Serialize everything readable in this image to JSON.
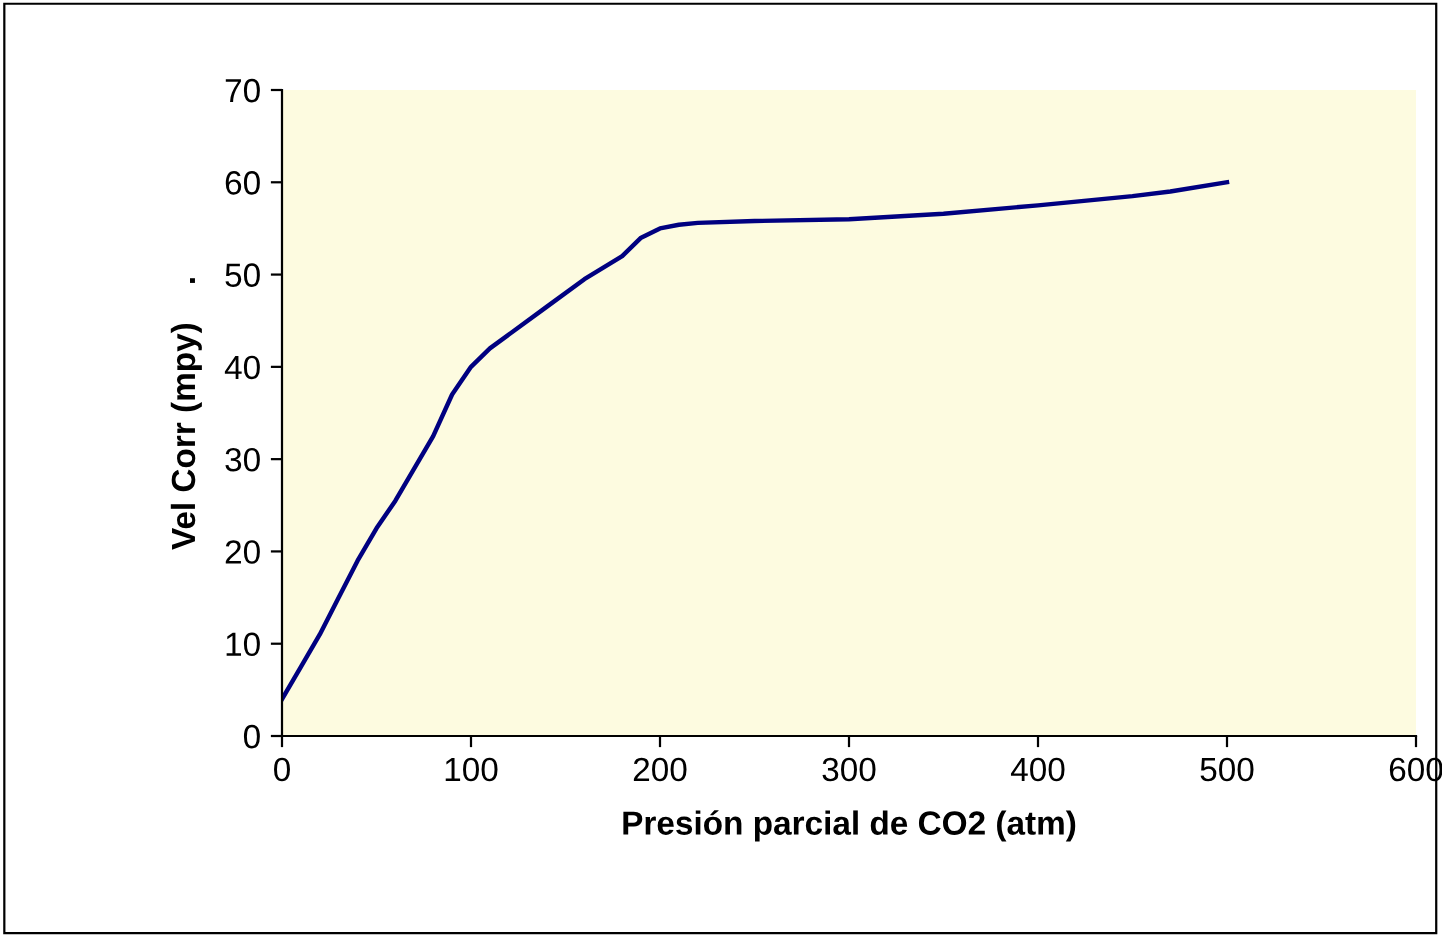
{
  "chart_data": {
    "type": "line",
    "xlabel": "Presión parcial de CO2 (atm)",
    "ylabel": "Vel Corr (mpy)    .",
    "x": [
      0,
      10,
      20,
      30,
      40,
      50,
      60,
      70,
      80,
      90,
      100,
      110,
      120,
      140,
      160,
      180,
      190,
      200,
      210,
      220,
      250,
      300,
      350,
      400,
      450,
      470,
      500
    ],
    "series": [
      {
        "color": "#000080",
        "values": [
          4,
          7.5,
          11,
          15,
          19,
          22.5,
          25.5,
          29,
          32.5,
          37,
          40,
          42,
          43.5,
          46.5,
          49.5,
          52,
          54,
          55,
          55.4,
          55.6,
          55.8,
          56,
          56.6,
          57.5,
          58.5,
          59,
          60
        ]
      }
    ],
    "xlim": [
      0,
      600
    ],
    "xticks": [
      0,
      100,
      200,
      300,
      400,
      500,
      600
    ],
    "ylim": [
      0,
      70
    ],
    "yticks": [
      0,
      10,
      20,
      30,
      40,
      50,
      60,
      70
    ],
    "grid": false,
    "legend": false,
    "marker": "none",
    "line_style": "solid"
  }
}
